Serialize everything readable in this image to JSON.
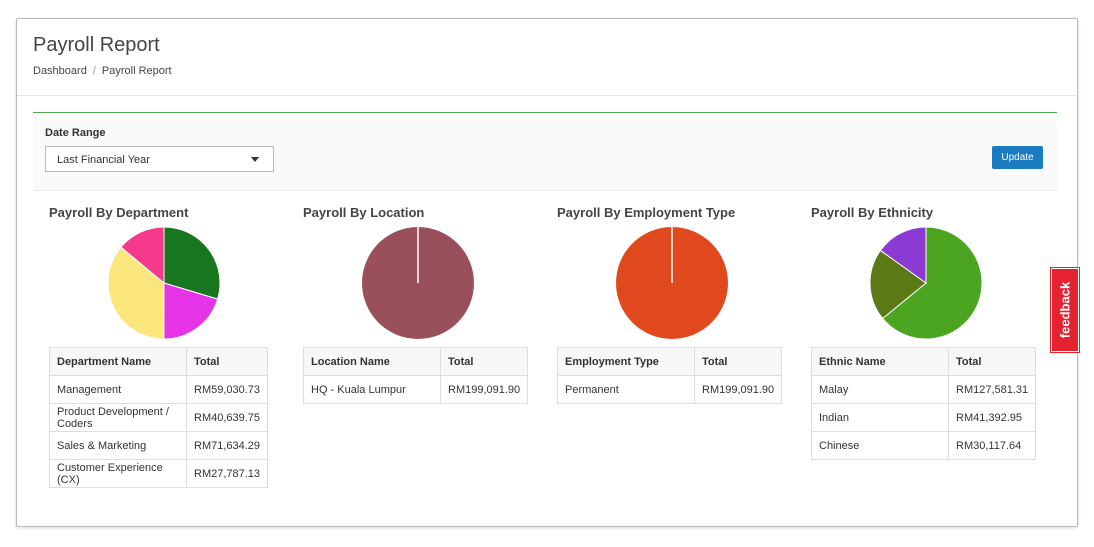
{
  "header": {
    "title": "Payroll Report",
    "breadcrumb": [
      "Dashboard",
      "Payroll Report"
    ],
    "separator": "/"
  },
  "filter": {
    "label": "Date Range",
    "selected": "Last Financial Year",
    "button": "Update"
  },
  "feedback": "feedback",
  "chart_data": [
    {
      "type": "pie",
      "title": "Payroll By Department",
      "columns": [
        "Department Name",
        "Total"
      ],
      "categories": [
        "Management",
        "Product Development / Coders",
        "Sales & Marketing",
        "Customer Experience (CX)"
      ],
      "values": [
        59030.73,
        40639.75,
        71634.29,
        27787.13
      ],
      "value_labels": [
        "RM59,030.73",
        "RM40,639.75",
        "RM71,634.29",
        "RM27,787.13"
      ],
      "colors": [
        "#17761e",
        "#e533e8",
        "#fbe77c",
        "#f53a8c"
      ]
    },
    {
      "type": "pie",
      "title": "Payroll By Location",
      "columns": [
        "Location Name",
        "Total"
      ],
      "categories": [
        "HQ - Kuala Lumpur"
      ],
      "values": [
        199091.9
      ],
      "value_labels": [
        "RM199,091.90"
      ],
      "colors": [
        "#9a505a"
      ]
    },
    {
      "type": "pie",
      "title": "Payroll By Employment Type",
      "columns": [
        "Employment Type",
        "Total"
      ],
      "categories": [
        "Permanent"
      ],
      "values": [
        199091.9
      ],
      "value_labels": [
        "RM199,091.90"
      ],
      "colors": [
        "#e0491d"
      ]
    },
    {
      "type": "pie",
      "title": "Payroll By Ethnicity",
      "columns": [
        "Ethnic Name",
        "Total"
      ],
      "categories": [
        "Malay",
        "Indian",
        "Chinese"
      ],
      "values": [
        127581.31,
        41392.95,
        30117.64
      ],
      "value_labels": [
        "RM127,581.31",
        "RM41,392.95",
        "RM30,117.64"
      ],
      "colors": [
        "#4ba520",
        "#5b7a16",
        "#8b3ad4"
      ]
    }
  ]
}
